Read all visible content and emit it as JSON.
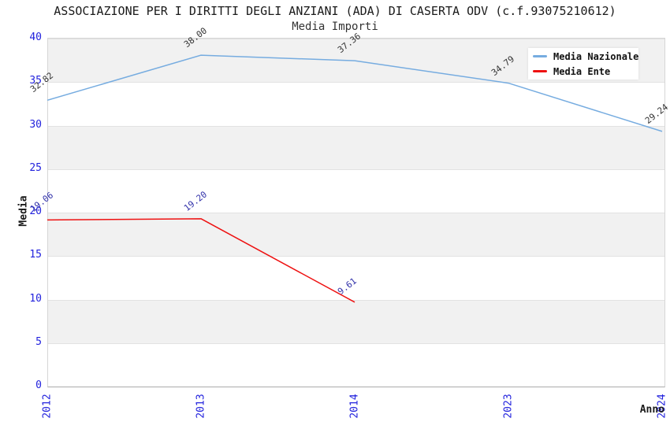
{
  "chart_data": {
    "type": "line",
    "title": "ASSOCIAZIONE PER I DIRITTI DEGLI ANZIANI (ADA) DI CASERTA ODV (c.f.93075210612)",
    "subtitle": "Media Importi",
    "xlabel": "Anno",
    "ylabel": "Media",
    "categories": [
      "2012",
      "2013",
      "2014",
      "2023",
      "2024"
    ],
    "series": [
      {
        "name": "Media Nazionale",
        "color": "#76ace0",
        "label_color": "#333333",
        "values": [
          32.82,
          38.0,
          37.36,
          34.79,
          29.24
        ]
      },
      {
        "name": "Media Ente",
        "color": "#ee1111",
        "label_color": "#3333aa",
        "values": [
          19.06,
          19.2,
          9.61,
          null,
          null
        ]
      }
    ],
    "ylim": [
      0,
      40
    ],
    "ytick_step": 5,
    "yticks": [
      0,
      5,
      10,
      15,
      20,
      25,
      30,
      35,
      40
    ],
    "grid": "horizontal-bands",
    "band_colors": [
      "#f1f1f1",
      "#ffffff"
    ],
    "tick_color": "#2222dd",
    "legend_position": "top-right",
    "legend_entries": [
      "Media Nazionale",
      "Media Ente"
    ]
  }
}
